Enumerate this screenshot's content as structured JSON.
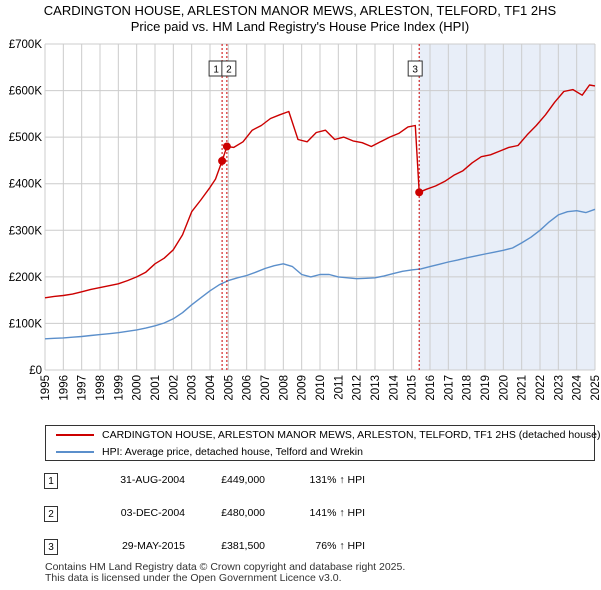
{
  "title_line1": "CARDINGTON HOUSE, ARLESTON MANOR MEWS, ARLESTON, TELFORD, TF1 2HS",
  "title_line2": "Price paid vs. HM Land Registry's House Price Index (HPI)",
  "colors": {
    "property_line": "#cc0000",
    "hpi_line": "#5b8fcb",
    "shade": "#e8eef8",
    "marker_line": "#cc0000",
    "grid": "#cccccc"
  },
  "chart_data": {
    "type": "line",
    "title": "CARDINGTON HOUSE, ARLESTON MANOR MEWS, ARLESTON, TELFORD, TF1 2HS — Price paid vs. HM Land Registry's House Price Index (HPI)",
    "xlabel": "",
    "ylabel": "",
    "xlim": [
      1995.0,
      2025.0
    ],
    "ylim": [
      0,
      700000
    ],
    "grid": true,
    "y_ticks": [
      0,
      100000,
      200000,
      300000,
      400000,
      500000,
      600000,
      700000
    ],
    "y_tick_labels": [
      "£0",
      "£100K",
      "£200K",
      "£300K",
      "£400K",
      "£500K",
      "£600K",
      "£700K"
    ],
    "x_ticks": [
      1995,
      1996,
      1997,
      1998,
      1999,
      2000,
      2001,
      2002,
      2003,
      2004,
      2005,
      2006,
      2007,
      2008,
      2009,
      2010,
      2011,
      2012,
      2013,
      2014,
      2015,
      2016,
      2017,
      2018,
      2019,
      2020,
      2021,
      2022,
      2023,
      2024,
      2025
    ],
    "shaded_region": [
      2015.41,
      2025.0
    ],
    "series": [
      {
        "name": "CARDINGTON HOUSE, ARLESTON MANOR MEWS, ARLESTON, TELFORD, TF1 2HS (detached house)",
        "color": "#cc0000",
        "x": [
          1995.0,
          1995.5,
          1996.0,
          1996.5,
          1997.0,
          1997.5,
          1998.0,
          1998.5,
          1999.0,
          1999.5,
          2000.0,
          2000.5,
          2001.0,
          2001.5,
          2002.0,
          2002.5,
          2003.0,
          2003.5,
          2004.0,
          2004.3,
          2004.66,
          2004.92,
          2005.3,
          2005.8,
          2006.3,
          2006.8,
          2007.3,
          2007.8,
          2008.3,
          2008.8,
          2009.3,
          2009.8,
          2010.3,
          2010.8,
          2011.3,
          2011.8,
          2012.3,
          2012.8,
          2013.3,
          2013.8,
          2014.3,
          2014.8,
          2015.2,
          2015.41,
          2015.8,
          2016.3,
          2016.8,
          2017.3,
          2017.8,
          2018.3,
          2018.8,
          2019.3,
          2019.8,
          2020.3,
          2020.8,
          2021.3,
          2021.8,
          2022.3,
          2022.8,
          2023.3,
          2023.8,
          2024.3,
          2024.7,
          2025.0
        ],
        "values": [
          155000,
          158000,
          160000,
          163000,
          168000,
          173000,
          177000,
          181000,
          185000,
          192000,
          200000,
          210000,
          228000,
          240000,
          258000,
          290000,
          340000,
          365000,
          392000,
          410000,
          449000,
          480000,
          478000,
          490000,
          515000,
          525000,
          540000,
          548000,
          555000,
          495000,
          490000,
          510000,
          515000,
          495000,
          500000,
          492000,
          488000,
          480000,
          490000,
          500000,
          508000,
          522000,
          525000,
          381500,
          388000,
          395000,
          405000,
          418000,
          428000,
          445000,
          458000,
          462000,
          470000,
          478000,
          482000,
          505000,
          525000,
          548000,
          575000,
          598000,
          602000,
          590000,
          612000,
          610000
        ]
      },
      {
        "name": "HPI: Average price, detached house, Telford and Wrekin",
        "color": "#5b8fcb",
        "x": [
          1995.0,
          1995.5,
          1996.0,
          1996.5,
          1997.0,
          1997.5,
          1998.0,
          1998.5,
          1999.0,
          1999.5,
          2000.0,
          2000.5,
          2001.0,
          2001.5,
          2002.0,
          2002.5,
          2003.0,
          2003.5,
          2004.0,
          2004.5,
          2005.0,
          2005.5,
          2006.0,
          2006.5,
          2007.0,
          2007.5,
          2008.0,
          2008.5,
          2009.0,
          2009.5,
          2010.0,
          2010.5,
          2011.0,
          2011.5,
          2012.0,
          2012.5,
          2013.0,
          2013.5,
          2014.0,
          2014.5,
          2015.0,
          2015.5,
          2016.0,
          2016.5,
          2017.0,
          2017.5,
          2018.0,
          2018.5,
          2019.0,
          2019.5,
          2020.0,
          2020.5,
          2021.0,
          2021.5,
          2022.0,
          2022.5,
          2023.0,
          2023.5,
          2024.0,
          2024.5,
          2025.0
        ],
        "values": [
          67000,
          68000,
          69000,
          70500,
          72000,
          74000,
          76000,
          78000,
          80000,
          83000,
          86000,
          90000,
          95000,
          101000,
          110000,
          123000,
          140000,
          155000,
          170000,
          183000,
          192000,
          198000,
          203000,
          210000,
          218000,
          224000,
          228000,
          222000,
          205000,
          200000,
          205000,
          205000,
          200000,
          198000,
          196000,
          197000,
          198000,
          202000,
          207000,
          212000,
          215000,
          217000,
          222000,
          227000,
          232000,
          236000,
          241000,
          245000,
          249000,
          253000,
          257000,
          262000,
          273000,
          285000,
          300000,
          318000,
          333000,
          340000,
          342000,
          338000,
          345000
        ]
      }
    ],
    "markers": [
      {
        "label": "1",
        "x": 2004.66,
        "y": 449000
      },
      {
        "label": "2",
        "x": 2004.92,
        "y": 480000
      },
      {
        "label": "3",
        "x": 2015.41,
        "y": 381500
      }
    ]
  },
  "legend": {
    "property_label": "CARDINGTON HOUSE, ARLESTON MANOR MEWS, ARLESTON, TELFORD, TF1 2HS (detached house)",
    "hpi_label": "HPI: Average price, detached house, Telford and Wrekin"
  },
  "transactions": [
    {
      "num": "1",
      "date": "31-AUG-2004",
      "price": "£449,000",
      "hpi": "131% ↑ HPI"
    },
    {
      "num": "2",
      "date": "03-DEC-2004",
      "price": "£480,000",
      "hpi": "141% ↑ HPI"
    },
    {
      "num": "3",
      "date": "29-MAY-2015",
      "price": "£381,500",
      "hpi": "76% ↑ HPI"
    }
  ],
  "footer": {
    "line1": "Contains HM Land Registry data © Crown copyright and database right 2025.",
    "line2": "This data is licensed under the Open Government Licence v3.0."
  }
}
